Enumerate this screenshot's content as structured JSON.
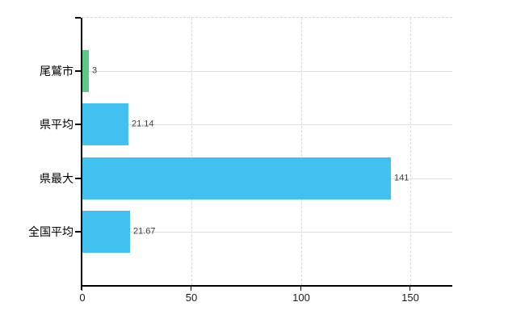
{
  "chart_data": {
    "type": "bar",
    "orientation": "horizontal",
    "title": "",
    "xlabel": "",
    "ylabel": "",
    "legend_position": "none",
    "categories": [
      "尾鷲市",
      "県平均",
      "県最大",
      "全国平均"
    ],
    "values": [
      3,
      21.14,
      141,
      21.67
    ],
    "value_labels": [
      "3",
      "21.14",
      "141",
      "21.67"
    ],
    "bar_colors": [
      "#5cc885",
      "#41c1ef",
      "#41c1ef",
      "#41c1ef"
    ],
    "x_ticks": [
      0,
      50,
      100,
      150
    ],
    "x_tick_labels": [
      "0",
      "50",
      "100",
      "150"
    ],
    "xlim": [
      0,
      169.2
    ],
    "grid": {
      "vertical_style": "dashed",
      "horizontal_style": "solid-at-category-centers",
      "top_border_style": "dashed"
    },
    "colors": {
      "background": "#ffffff",
      "axis": "#000000",
      "grid_vertical": "#d9d9d9",
      "grid_horizontal": "#dbe4da",
      "category_label": "#000000",
      "tick_label": "#1a1a1a",
      "value_label": "#3c3c3c"
    }
  }
}
